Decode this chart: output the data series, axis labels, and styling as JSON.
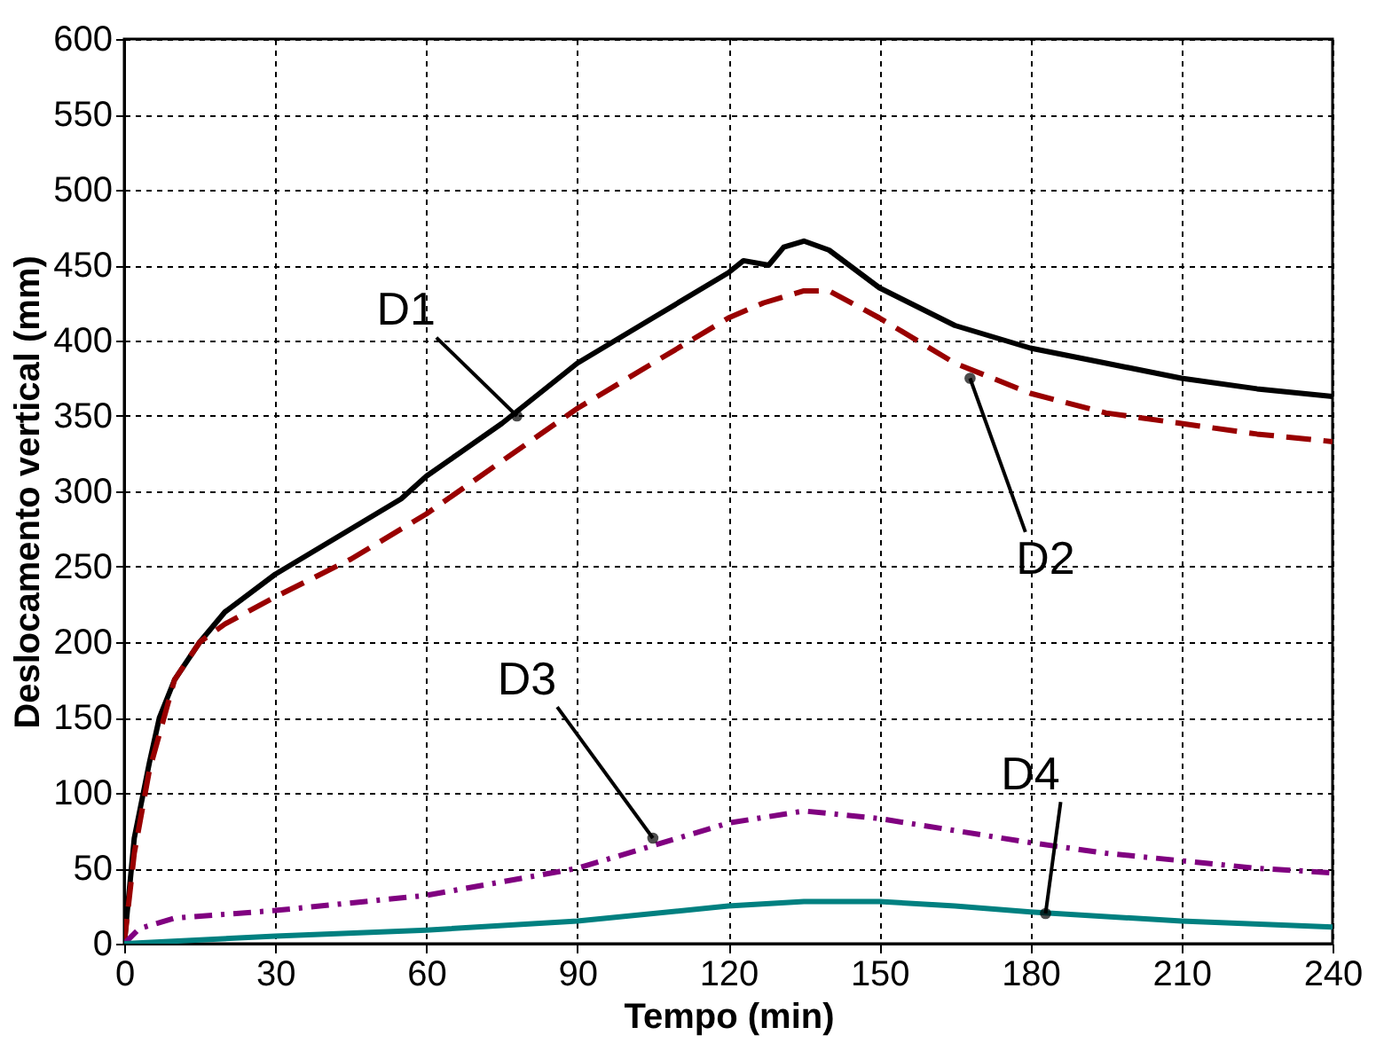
{
  "chart_data": {
    "type": "line",
    "xlabel": "Tempo (min)",
    "ylabel": "Deslocamento vertical (mm)",
    "xlim": [
      0,
      240
    ],
    "xticks": [
      0,
      30,
      60,
      90,
      120,
      150,
      180,
      210,
      240
    ],
    "ylim": [
      0,
      600
    ],
    "yticks": [
      0,
      50,
      100,
      150,
      200,
      250,
      300,
      350,
      400,
      450,
      500,
      550,
      600
    ],
    "grid": true,
    "marker": "none",
    "series": [
      {
        "color": "#000000",
        "line_style": "solid",
        "x": [
          0,
          2,
          5,
          7,
          10,
          15,
          20,
          30,
          45,
          55,
          60,
          75,
          90,
          105,
          120,
          123,
          128,
          131,
          135,
          140,
          150,
          165,
          180,
          195,
          210,
          225,
          240
        ],
        "values": [
          0,
          70,
          120,
          150,
          175,
          200,
          220,
          245,
          275,
          295,
          310,
          345,
          385,
          415,
          445,
          453,
          450,
          462,
          466,
          460,
          435,
          410,
          395,
          385,
          375,
          368,
          363
        ]
      },
      {
        "color": "#990000",
        "line_style": "dashed",
        "x": [
          0,
          2,
          5,
          10,
          15,
          20,
          30,
          45,
          60,
          75,
          90,
          105,
          120,
          127,
          135,
          140,
          150,
          165,
          180,
          195,
          210,
          225,
          240
        ],
        "values": [
          0,
          60,
          115,
          175,
          200,
          212,
          230,
          255,
          285,
          320,
          355,
          385,
          415,
          425,
          433,
          433,
          415,
          385,
          365,
          352,
          345,
          338,
          333
        ]
      },
      {
        "color": "#800080",
        "line_style": "dotted",
        "x": [
          0,
          3,
          10,
          30,
          60,
          90,
          105,
          120,
          135,
          150,
          165,
          180,
          195,
          210,
          225,
          240
        ],
        "values": [
          0,
          10,
          17,
          22,
          32,
          50,
          65,
          80,
          88,
          83,
          75,
          67,
          60,
          55,
          50,
          47
        ]
      },
      {
        "color": "#008080",
        "line_style": "solid",
        "x": [
          0,
          30,
          60,
          90,
          120,
          135,
          150,
          165,
          180,
          210,
          240
        ],
        "values": [
          0,
          5,
          9,
          15,
          25,
          28,
          28,
          25,
          21,
          15,
          11
        ]
      }
    ],
    "annotations": [
      {
        "text": "D1",
        "x": 78,
        "y": 350
      },
      {
        "text": "D2",
        "x": 168,
        "y": 375
      },
      {
        "text": "D3",
        "x": 105,
        "y": 70
      },
      {
        "text": "D4",
        "x": 183,
        "y": 20
      }
    ]
  }
}
